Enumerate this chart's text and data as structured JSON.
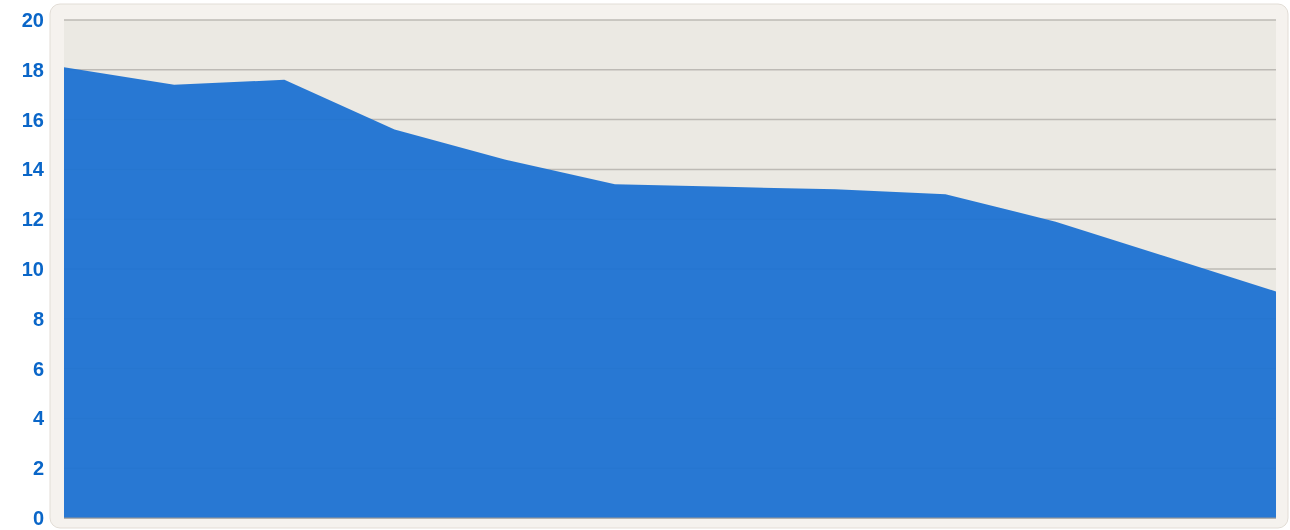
{
  "chart_data": {
    "type": "area",
    "categories": [
      null,
      null,
      null,
      null,
      null,
      null,
      null,
      null,
      null,
      null,
      null,
      null
    ],
    "series": [
      {
        "color": "#1e72d2",
        "values": [
          18.1,
          17.4,
          17.6,
          15.6,
          14.4,
          13.4,
          13.3,
          13.2,
          13.0,
          11.9,
          10.5,
          9.1
        ]
      }
    ],
    "ylim": [
      0,
      20
    ],
    "yticks": [
      0,
      2,
      4,
      6,
      8,
      10,
      12,
      14,
      16,
      18,
      20
    ],
    "grid": "y"
  }
}
